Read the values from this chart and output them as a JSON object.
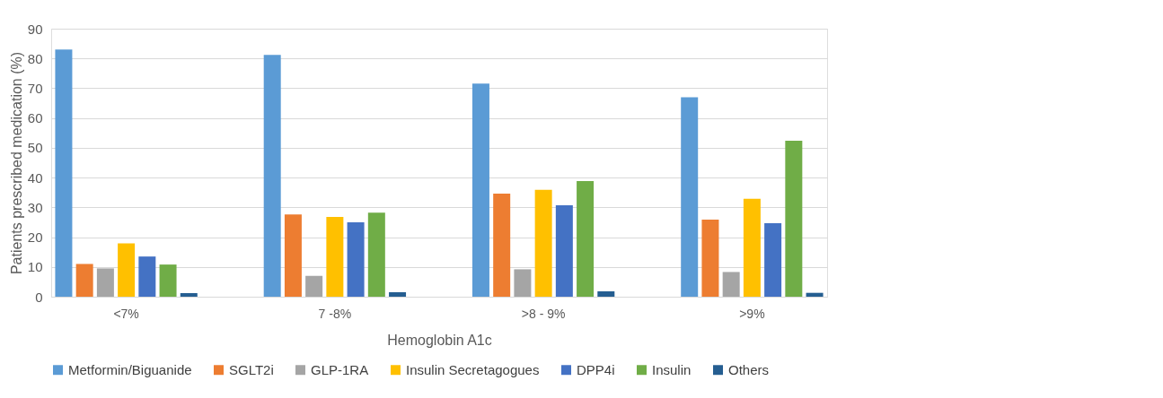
{
  "chart_data": {
    "type": "bar",
    "xlabel": "Hemoglobin A1c",
    "ylabel": "Patients prescribed medication (%)",
    "categories": [
      "<7%",
      "7 -8%",
      ">8 - 9%",
      ">9%"
    ],
    "series": [
      {
        "name": "Metformin/Biguanide",
        "color": "#5b9bd5",
        "values": [
          83.0,
          81.2,
          71.6,
          67.0
        ]
      },
      {
        "name": "SGLT2i",
        "color": "#ed7d31",
        "values": [
          11.0,
          27.6,
          34.6,
          25.9
        ]
      },
      {
        "name": "GLP-1RA",
        "color": "#a5a5a5",
        "values": [
          9.5,
          7.0,
          9.2,
          8.3
        ]
      },
      {
        "name": "Insulin Secretagogues",
        "color": "#ffc000",
        "values": [
          17.9,
          26.8,
          35.9,
          32.9
        ]
      },
      {
        "name": "DPP4i",
        "color": "#4472c4",
        "values": [
          13.5,
          25.0,
          30.7,
          24.7
        ]
      },
      {
        "name": "Insulin",
        "color": "#70ad47",
        "values": [
          10.8,
          28.2,
          38.8,
          52.4
        ]
      },
      {
        "name": "Others",
        "color": "#255e91",
        "values": [
          1.2,
          1.5,
          1.8,
          1.3
        ]
      }
    ],
    "ylim": [
      0,
      90
    ],
    "yticks": [
      0,
      10,
      20,
      30,
      40,
      50,
      60,
      70,
      80,
      90
    ],
    "grid": "y",
    "legend": "bottom"
  }
}
